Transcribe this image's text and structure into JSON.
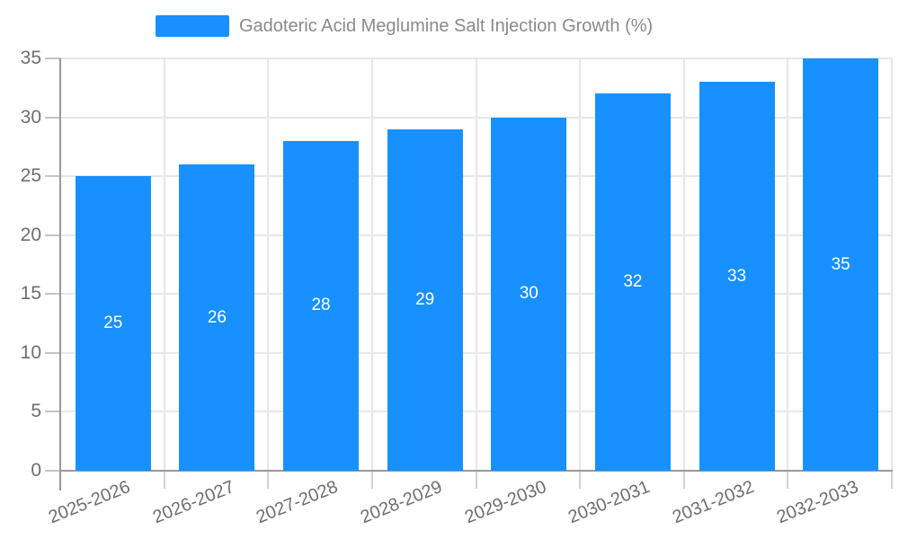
{
  "chart_data": {
    "type": "bar",
    "title": "Gadoteric Acid Meglumine Salt Injection Growth (%)",
    "legend": "Gadoteric Acid Meglumine Salt Injection Growth (%)",
    "legend_position": "top-center",
    "categories": [
      "2025-2026",
      "2026-2027",
      "2027-2028",
      "2028-2029",
      "2029-2030",
      "2030-2031",
      "2031-2032",
      "2032-2033"
    ],
    "values": [
      25,
      26,
      28,
      29,
      30,
      32,
      33,
      35
    ],
    "xlabel": "",
    "ylabel": "",
    "ylim": [
      0,
      35
    ],
    "ytick_step": 5,
    "yticks": [
      0,
      5,
      10,
      15,
      20,
      25,
      30,
      35
    ],
    "grid": true,
    "data_labels_inside_bars": true,
    "colors": {
      "bar": "#1890ff",
      "bar_value_label": "#ffffff",
      "legend_text": "#8a8a8a",
      "axis_tick_text": "#6e6e6e",
      "grid_line": "#e7e7e7",
      "axis_line": "#999999",
      "minor_tick": "#d2d2d2",
      "y_tick_mark": "#c4c4c4",
      "background": "#ffffff"
    }
  }
}
